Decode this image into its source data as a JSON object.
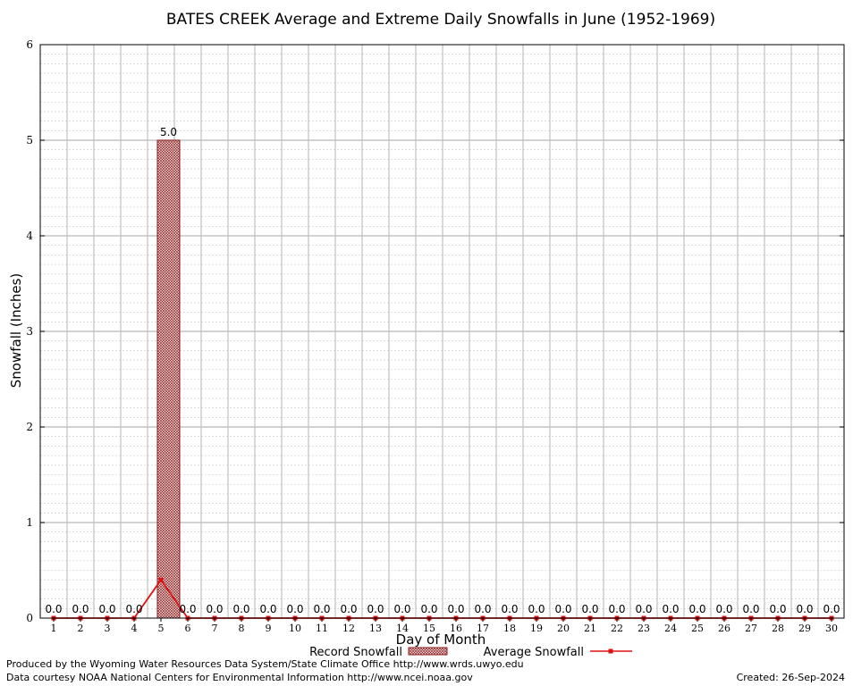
{
  "chart_data": {
    "type": "bar",
    "title": "BATES CREEK Average and Extreme Daily Snowfalls in June (1952-1969)",
    "xlabel": "Day of Month",
    "ylabel": "Snowfall (Inches)",
    "ylim": [
      0,
      6
    ],
    "yticks": [
      "0",
      "1",
      "2",
      "3",
      "4",
      "5",
      "6"
    ],
    "categories": [
      "1",
      "2",
      "3",
      "4",
      "5",
      "6",
      "7",
      "8",
      "9",
      "10",
      "11",
      "12",
      "13",
      "14",
      "15",
      "16",
      "17",
      "18",
      "19",
      "20",
      "21",
      "22",
      "23",
      "24",
      "25",
      "26",
      "27",
      "28",
      "29",
      "30"
    ],
    "series": [
      {
        "name": "Record Snowfall",
        "type": "bar",
        "color": "#8b1a1a",
        "values": [
          0,
          0,
          0,
          0,
          5.0,
          0,
          0,
          0,
          0,
          0,
          0,
          0,
          0,
          0,
          0,
          0,
          0,
          0,
          0,
          0,
          0,
          0,
          0,
          0,
          0,
          0,
          0,
          0,
          0,
          0
        ],
        "labels": [
          "0.0",
          "0.0",
          "0.0",
          "0.0",
          "5.0",
          "0.0",
          "0.0",
          "0.0",
          "0.0",
          "0.0",
          "0.0",
          "0.0",
          "0.0",
          "0.0",
          "0.0",
          "0.0",
          "0.0",
          "0.0",
          "0.0",
          "0.0",
          "0.0",
          "0.0",
          "0.0",
          "0.0",
          "0.0",
          "0.0",
          "0.0",
          "0.0",
          "0.0",
          "0.0"
        ]
      },
      {
        "name": "Average Snowfall",
        "type": "line",
        "color": "#dd1111",
        "values": [
          0,
          0,
          0,
          0,
          0.4,
          0,
          0,
          0,
          0,
          0,
          0,
          0,
          0,
          0,
          0,
          0,
          0,
          0,
          0,
          0,
          0,
          0,
          0,
          0,
          0,
          0,
          0,
          0,
          0,
          0
        ]
      }
    ],
    "grid": true,
    "legend": "bottom"
  },
  "footer": {
    "left_line1": "Produced by the Wyoming Water Resources Data System/State Climate Office http://www.wrds.uwyo.edu",
    "left_line2": "Data courtesy NOAA National Centers for Environmental Information http://www.ncei.noaa.gov",
    "created": "Created:  26-Sep-2024"
  }
}
